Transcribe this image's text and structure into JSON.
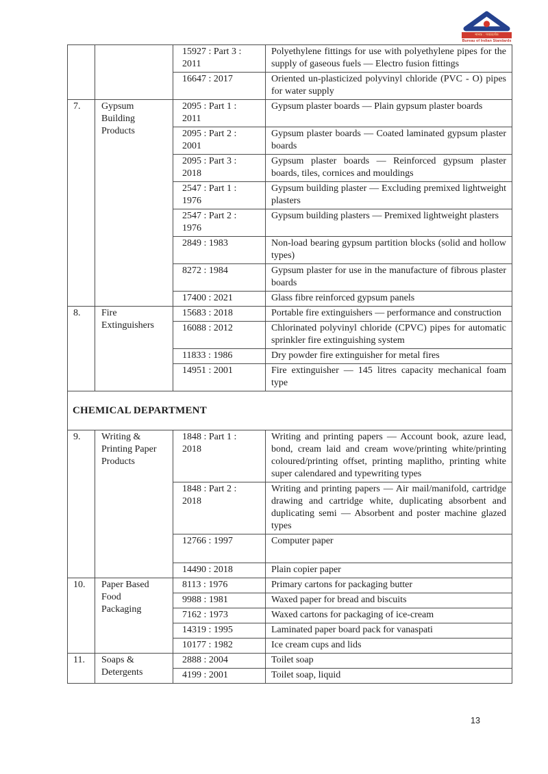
{
  "page_number": "13",
  "logo": {
    "hindi_text": "मानक : पथप्रदर्शक",
    "caption": "Bureau of Indian Standards",
    "colors": {
      "blue": "#24418e",
      "red": "#cf3a30"
    }
  },
  "table": {
    "blocks": [
      {
        "type": "groups",
        "groups": [
          {
            "serial": "",
            "category": "",
            "rows": [
              {
                "standard": "15927 : Part 3 :\n2011",
                "description": "Polyethylene fittings for use with polyethylene pipes for the supply of gaseous fuels — Electro fusion fittings"
              },
              {
                "standard": "16647 : 2017",
                "description": "Oriented un-plasticized polyvinyl chloride (PVC - O) pipes for water supply"
              }
            ]
          },
          {
            "serial": "7.",
            "category": "Gypsum\nBuilding\nProducts",
            "rows": [
              {
                "standard": "2095 : Part 1 :\n2011",
                "description": "Gypsum plaster boards — Plain gypsum plaster boards"
              },
              {
                "standard": "2095 : Part 2 :\n2001",
                "description": "Gypsum plaster boards — Coated laminated gypsum plaster boards"
              },
              {
                "standard": "2095 : Part 3 :\n2018",
                "description": "Gypsum plaster boards — Reinforced gypsum plaster boards, tiles, cornices and mouldings"
              },
              {
                "standard": "2547 : Part 1 :\n1976",
                "description": "Gypsum building plaster — Excluding premixed lightweight plasters"
              },
              {
                "standard": "2547 : Part 2 :\n1976",
                "description": "Gypsum building plasters — Premixed lightweight plasters"
              },
              {
                "standard": "2849 : 1983",
                "description": "Non-load bearing gypsum partition blocks (solid and hollow types)"
              },
              {
                "standard": "8272 : 1984",
                "description": "Gypsum plaster for use in the manufacture of fibrous plaster boards"
              },
              {
                "standard": "17400 : 2021",
                "description": "Glass fibre reinforced gypsum panels"
              }
            ]
          },
          {
            "serial": "8.",
            "category": "Fire\nExtinguishers",
            "rows": [
              {
                "standard": "15683 : 2018",
                "description": "Portable fire extinguishers — performance and construction"
              },
              {
                "standard": "16088 : 2012",
                "description": "Chlorinated polyvinyl chloride (CPVC) pipes for automatic sprinkler fire extinguishing system"
              },
              {
                "standard": "11833 : 1986",
                "description": "Dry powder fire extinguisher for metal fires"
              },
              {
                "standard": "14951 : 2001",
                "description": "Fire extinguisher — 145 litres capacity mechanical foam type"
              }
            ]
          }
        ]
      },
      {
        "type": "heading",
        "label": "CHEMICAL DEPARTMENT"
      },
      {
        "type": "groups",
        "groups": [
          {
            "serial": "9.",
            "category": "Writing &\nPrinting Paper\nProducts",
            "rows": [
              {
                "standard": "1848 : Part 1 :\n2018",
                "description": "Writing and printing papers — Account book, azure lead, bond, cream laid and cream wove/printing white/printing coloured/printing offset, printing maplitho, printing white super calendared and typewriting types"
              },
              {
                "standard": "1848 : Part 2 :\n2018",
                "description": "Writing and printing papers — Air mail/manifold, cartridge drawing and cartridge white, duplicating absorbent and duplicating semi — Absorbent and poster machine glazed types"
              },
              {
                "standard": "12766 : 1997",
                "description": "Computer paper",
                "tall": true
              },
              {
                "standard": "14490 : 2018",
                "description": "Plain copier paper"
              }
            ]
          },
          {
            "serial": "10.",
            "category": "Paper Based\nFood\nPackaging",
            "rows": [
              {
                "standard": "8113 : 1976",
                "description": "Primary cartons for packaging butter"
              },
              {
                "standard": "9988 : 1981",
                "description": "Waxed paper for bread and biscuits"
              },
              {
                "standard": "7162 : 1973",
                "description": "Waxed cartons for packaging of ice-cream"
              },
              {
                "standard": "14319 : 1995",
                "description": "Laminated paper board pack for vanaspati"
              },
              {
                "standard": "10177 : 1982",
                "description": "Ice cream cups and lids"
              }
            ]
          },
          {
            "serial": "11.",
            "category": "Soaps &\nDetergents",
            "rows": [
              {
                "standard": "2888 : 2004",
                "description": "Toilet soap"
              },
              {
                "standard": "4199 : 2001",
                "description": "Toilet soap, liquid"
              }
            ]
          }
        ]
      }
    ]
  }
}
